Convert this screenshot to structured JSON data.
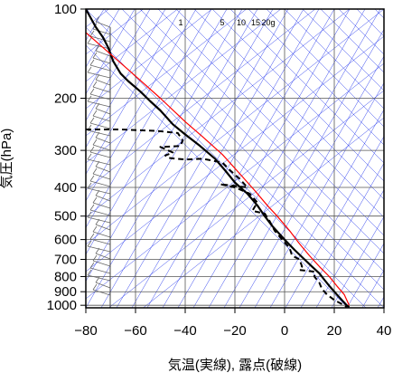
{
  "chart_data": {
    "type": "line",
    "title": "",
    "xlabel": "気温(実線), 露点(破線)",
    "ylabel": "気圧(hPa)",
    "xlim": [
      -80,
      40
    ],
    "ylim": [
      1020,
      100
    ],
    "y_scale": "log",
    "x_ticks": [
      -80,
      -60,
      -40,
      -20,
      0,
      20,
      40
    ],
    "y_ticks": [
      100,
      200,
      300,
      400,
      500,
      600,
      700,
      800,
      900,
      1000
    ],
    "x_tick_labels": [
      "−80",
      "−60",
      "−40",
      "−20",
      "0",
      "20",
      "40"
    ],
    "y_tick_labels": [
      "100",
      "200",
      "300",
      "400",
      "500",
      "600",
      "700",
      "800",
      "900",
      "1000"
    ],
    "mixing_ratio_labels": [
      "1",
      "5",
      "10",
      "15",
      "20g"
    ],
    "grid": true,
    "series": [
      {
        "style": "solid",
        "color": "#000000",
        "points": [
          [
            -80,
            100
          ],
          [
            -76,
            115
          ],
          [
            -73,
            125
          ],
          [
            -71,
            135
          ],
          [
            -69,
            150
          ],
          [
            -66,
            165
          ],
          [
            -63,
            175
          ],
          [
            -58,
            190
          ],
          [
            -54,
            205
          ],
          [
            -50,
            220
          ],
          [
            -45,
            245
          ],
          [
            -40,
            265
          ],
          [
            -34,
            290
          ],
          [
            -28,
            320
          ],
          [
            -24,
            350
          ],
          [
            -20,
            385
          ],
          [
            -15,
            420
          ],
          [
            -11,
            460
          ],
          [
            -8,
            500
          ],
          [
            -5,
            540
          ],
          [
            0,
            600
          ],
          [
            4,
            650
          ],
          [
            8,
            700
          ],
          [
            11,
            740
          ],
          [
            14,
            780
          ],
          [
            16,
            820
          ],
          [
            18,
            860
          ],
          [
            19,
            880
          ],
          [
            21,
            920
          ],
          [
            23,
            960
          ],
          [
            25,
            1000
          ],
          [
            26,
            1015
          ]
        ]
      },
      {
        "style": "dashed",
        "color": "#000000",
        "points": [
          [
            -80,
            255
          ],
          [
            -66,
            255
          ],
          [
            -51,
            258
          ],
          [
            -43,
            262
          ],
          [
            -41,
            278
          ],
          [
            -42,
            290
          ],
          [
            -50,
            292
          ],
          [
            -45,
            305
          ],
          [
            -48,
            312
          ],
          [
            -47,
            318
          ],
          [
            -40,
            322
          ],
          [
            -33,
            320
          ],
          [
            -25,
            330
          ],
          [
            -22,
            350
          ],
          [
            -18,
            375
          ],
          [
            -15,
            400
          ],
          [
            -26,
            390
          ],
          [
            -20,
            400
          ],
          [
            -14,
            420
          ],
          [
            -11,
            450
          ],
          [
            -13,
            480
          ],
          [
            -8,
            490
          ],
          [
            -6,
            520
          ],
          [
            -4,
            560
          ],
          [
            -1,
            600
          ],
          [
            2,
            640
          ],
          [
            3,
            680
          ],
          [
            6,
            700
          ],
          [
            7,
            740
          ],
          [
            6,
            760
          ],
          [
            12,
            770
          ],
          [
            12,
            800
          ],
          [
            14,
            840
          ],
          [
            15,
            880
          ],
          [
            17,
            920
          ],
          [
            20,
            960
          ],
          [
            24,
            1000
          ],
          [
            25,
            1015
          ]
        ]
      },
      {
        "style": "solid",
        "color": "#ff0000",
        "points": [
          [
            -80,
            120
          ],
          [
            -63,
            160
          ],
          [
            -50,
            200
          ],
          [
            -40,
            240
          ],
          [
            -33,
            270
          ],
          [
            -25,
            310
          ],
          [
            -18,
            360
          ],
          [
            -12,
            410
          ],
          [
            -7,
            460
          ],
          [
            -3,
            500
          ],
          [
            2,
            560
          ],
          [
            6,
            620
          ],
          [
            10,
            680
          ],
          [
            14,
            740
          ],
          [
            18,
            800
          ],
          [
            21,
            860
          ],
          [
            24,
            920
          ],
          [
            26,
            1000
          ]
        ]
      }
    ]
  }
}
